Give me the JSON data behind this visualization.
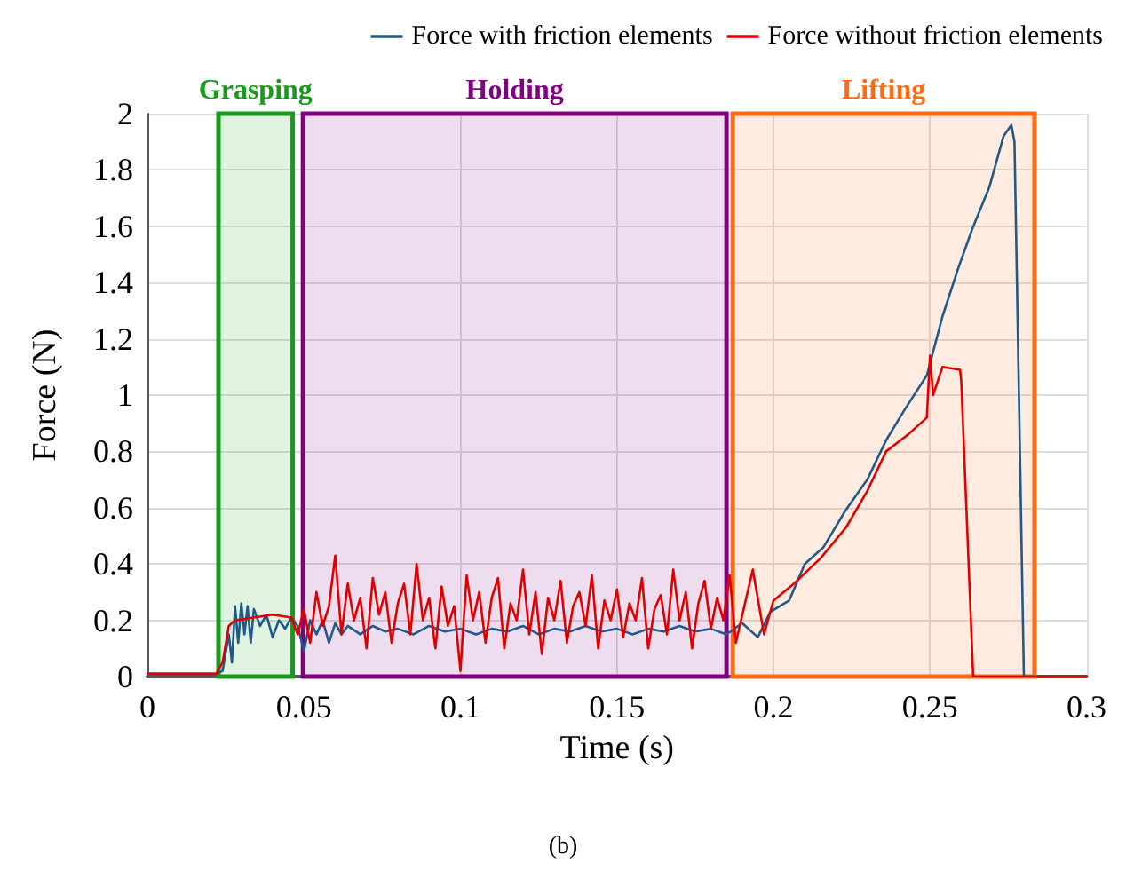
{
  "chart_data": {
    "type": "line",
    "xlabel": "Time (s)",
    "ylabel": "Force (N)",
    "xlim": [
      0,
      0.3
    ],
    "ylim": [
      0,
      2
    ],
    "xticks": [
      0,
      0.05,
      0.1,
      0.15,
      0.2,
      0.25,
      0.3
    ],
    "yticks": [
      0,
      0.2,
      0.4,
      0.6,
      0.8,
      1,
      1.2,
      1.4,
      1.6,
      1.8,
      2
    ],
    "grid": true,
    "legend": "top",
    "marker": "none",
    "line_style": "solid",
    "series": [
      {
        "name": "Force with friction elements",
        "color": "#1f5a8a",
        "x": [
          0,
          0.01,
          0.022,
          0.024,
          0.026,
          0.027,
          0.028,
          0.029,
          0.03,
          0.031,
          0.032,
          0.033,
          0.034,
          0.036,
          0.038,
          0.04,
          0.042,
          0.044,
          0.046,
          0.048,
          0.05,
          0.052,
          0.054,
          0.056,
          0.058,
          0.06,
          0.062,
          0.064,
          0.068,
          0.072,
          0.076,
          0.08,
          0.085,
          0.09,
          0.095,
          0.1,
          0.105,
          0.11,
          0.115,
          0.12,
          0.125,
          0.13,
          0.135,
          0.14,
          0.145,
          0.15,
          0.155,
          0.16,
          0.165,
          0.17,
          0.175,
          0.18,
          0.185,
          0.19,
          0.195,
          0.199,
          0.205,
          0.21,
          0.216,
          0.223,
          0.23,
          0.236,
          0.242,
          0.249,
          0.254,
          0.259,
          0.2635,
          0.269,
          0.2735,
          0.276,
          0.277,
          0.28,
          0.29,
          0.3
        ],
        "values": [
          0.01,
          0.01,
          0.01,
          0.02,
          0.15,
          0.05,
          0.25,
          0.12,
          0.26,
          0.15,
          0.25,
          0.12,
          0.24,
          0.18,
          0.22,
          0.14,
          0.2,
          0.17,
          0.21,
          0.18,
          0.09,
          0.2,
          0.15,
          0.2,
          0.12,
          0.19,
          0.15,
          0.18,
          0.15,
          0.18,
          0.16,
          0.17,
          0.15,
          0.18,
          0.16,
          0.17,
          0.15,
          0.17,
          0.16,
          0.18,
          0.15,
          0.17,
          0.16,
          0.18,
          0.16,
          0.17,
          0.15,
          0.17,
          0.16,
          0.18,
          0.16,
          0.17,
          0.15,
          0.19,
          0.14,
          0.23,
          0.27,
          0.4,
          0.46,
          0.59,
          0.7,
          0.84,
          0.95,
          1.07,
          1.28,
          1.45,
          1.59,
          1.74,
          1.92,
          1.96,
          1.9,
          0,
          0,
          0
        ]
      },
      {
        "name": "Force without friction elements",
        "color": "#e00000",
        "x": [
          0,
          0.01,
          0.022,
          0.024,
          0.026,
          0.028,
          0.034,
          0.04,
          0.046,
          0.048,
          0.05,
          0.052,
          0.054,
          0.056,
          0.058,
          0.06,
          0.062,
          0.064,
          0.066,
          0.068,
          0.07,
          0.072,
          0.074,
          0.076,
          0.078,
          0.08,
          0.082,
          0.084,
          0.086,
          0.088,
          0.09,
          0.092,
          0.094,
          0.096,
          0.098,
          0.1,
          0.102,
          0.104,
          0.106,
          0.108,
          0.11,
          0.112,
          0.114,
          0.116,
          0.118,
          0.12,
          0.122,
          0.124,
          0.126,
          0.128,
          0.13,
          0.132,
          0.134,
          0.136,
          0.138,
          0.14,
          0.142,
          0.144,
          0.146,
          0.148,
          0.15,
          0.152,
          0.154,
          0.156,
          0.158,
          0.16,
          0.162,
          0.164,
          0.166,
          0.168,
          0.17,
          0.172,
          0.174,
          0.176,
          0.178,
          0.18,
          0.182,
          0.184,
          0.186,
          0.188,
          0.1934,
          0.197,
          0.2,
          0.2065,
          0.215,
          0.2232,
          0.23,
          0.236,
          0.243,
          0.249,
          0.25,
          0.251,
          0.254,
          0.2596,
          0.26,
          0.2638,
          0.27,
          0.3
        ],
        "values": [
          0.01,
          0.01,
          0.01,
          0.05,
          0.18,
          0.2,
          0.21,
          0.22,
          0.21,
          0.15,
          0.24,
          0.12,
          0.3,
          0.18,
          0.25,
          0.43,
          0.15,
          0.33,
          0.2,
          0.28,
          0.1,
          0.35,
          0.22,
          0.3,
          0.12,
          0.26,
          0.33,
          0.15,
          0.4,
          0.2,
          0.28,
          0.1,
          0.32,
          0.18,
          0.25,
          0.02,
          0.36,
          0.2,
          0.3,
          0.12,
          0.28,
          0.35,
          0.1,
          0.26,
          0.2,
          0.38,
          0.15,
          0.3,
          0.08,
          0.28,
          0.2,
          0.34,
          0.12,
          0.25,
          0.3,
          0.18,
          0.36,
          0.1,
          0.27,
          0.2,
          0.31,
          0.14,
          0.26,
          0.2,
          0.35,
          0.1,
          0.24,
          0.29,
          0.15,
          0.38,
          0.2,
          0.3,
          0.1,
          0.26,
          0.34,
          0.17,
          0.28,
          0.2,
          0.36,
          0.12,
          0.38,
          0.15,
          0.27,
          0.33,
          0.42,
          0.53,
          0.66,
          0.8,
          0.86,
          0.92,
          1.14,
          1,
          1.1,
          1.09,
          1.05,
          0,
          0,
          0
        ]
      }
    ],
    "bands": [
      {
        "axis": "x",
        "from": 0.0227,
        "to": 0.0464,
        "label": "Grasping",
        "color": "#1a9a1a"
      },
      {
        "axis": "x",
        "from": 0.0497,
        "to": 0.185,
        "label": "Holding",
        "color": "#800080"
      },
      {
        "axis": "x",
        "from": 0.187,
        "to": 0.2834,
        "label": "Lifting",
        "color": "#ff6a13"
      }
    ],
    "annotations": [
      "(b)"
    ]
  }
}
